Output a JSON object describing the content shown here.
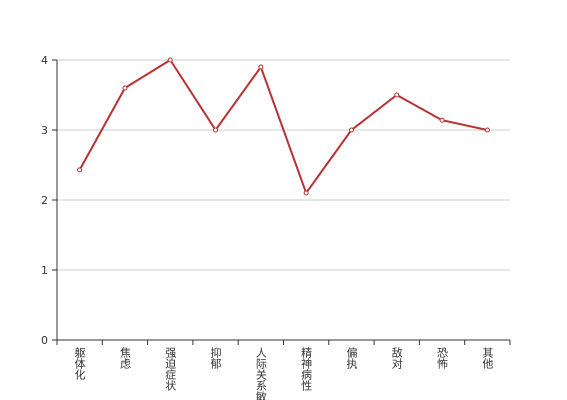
{
  "chart_data": {
    "type": "line",
    "categories": [
      "躯体化",
      "焦虑",
      "强迫症状",
      "抑郁",
      "人际关系敏感",
      "精神病性",
      "偏执",
      "敌对",
      "恐怖",
      "其他"
    ],
    "values": [
      2.43,
      3.6,
      4.0,
      3.0,
      3.9,
      2.1,
      3.0,
      3.5,
      3.14,
      3.0
    ],
    "color": "#b83232",
    "ylim": [
      0,
      4
    ],
    "yticks": [
      0,
      1,
      2,
      3,
      4
    ],
    "grid": true
  }
}
